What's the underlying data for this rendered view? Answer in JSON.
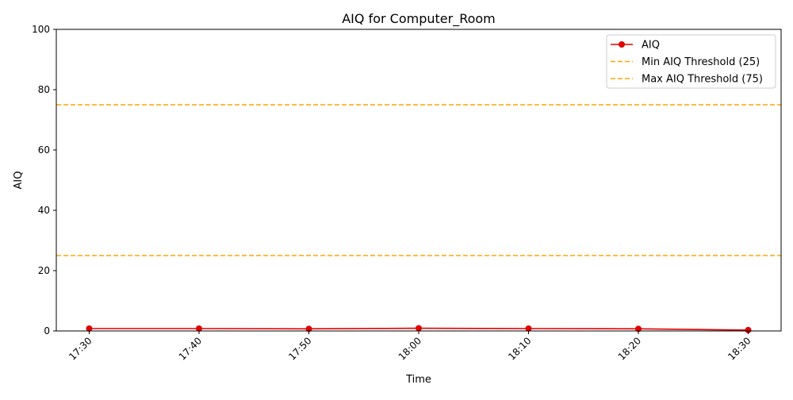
{
  "chart_data": {
    "type": "line",
    "title": "AIQ for Computer_Room",
    "xlabel": "Time",
    "ylabel": "AIQ",
    "categories": [
      "17:30",
      "17:40",
      "17:50",
      "18:00",
      "18:10",
      "18:20",
      "18:30"
    ],
    "series": [
      {
        "name": "AIQ",
        "values": [
          0.8,
          0.8,
          0.7,
          0.9,
          0.8,
          0.7,
          0.3
        ],
        "color": "#e00000",
        "marker": "circle"
      }
    ],
    "thresholds": [
      {
        "name": "Min AIQ Threshold (25)",
        "value": 25,
        "color": "#ffa500",
        "style": "dashed"
      },
      {
        "name": "Max AIQ Threshold (75)",
        "value": 75,
        "color": "#ffa500",
        "style": "dashed"
      }
    ],
    "ylim": [
      0,
      100
    ],
    "yticks": [
      0,
      20,
      40,
      60,
      80,
      100
    ],
    "grid": false,
    "legend_position": "top-right"
  }
}
